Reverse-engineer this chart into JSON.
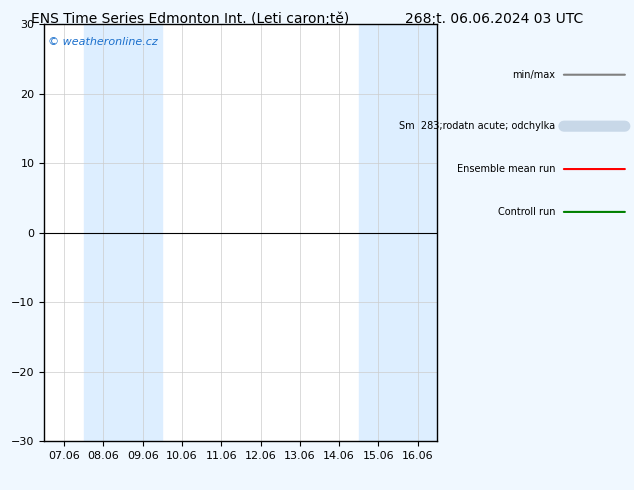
{
  "title_left": "ENS Time Series Edmonton Int. (Leti caron;tě)",
  "title_right": "268;t. 06.06.2024 03 UTC",
  "xlabel_ticks": [
    "07.06",
    "08.06",
    "09.06",
    "10.06",
    "11.06",
    "12.06",
    "13.06",
    "14.06",
    "15.06",
    "16.06"
  ],
  "ylim": [
    -30,
    30
  ],
  "yticks": [
    -30,
    -20,
    -10,
    0,
    10,
    20,
    30
  ],
  "bg_color": "#f0f8ff",
  "plot_bg_color": "#ffffff",
  "shaded_columns": [
    1,
    2,
    5,
    6
  ],
  "shaded_color": "#ddeeff",
  "watermark": "© weatheronline.cz",
  "legend_entries": [
    {
      "label": "min/max",
      "color": "#808080",
      "lw": 1.5,
      "style": "-"
    },
    {
      "label": "Sm  283;rodatn acute; odchylka",
      "color": "#c8d8e8",
      "lw": 8,
      "style": "-"
    },
    {
      "label": "Ensemble mean run",
      "color": "#ff0000",
      "lw": 1.5,
      "style": "-"
    },
    {
      "label": "Controll run",
      "color": "#008000",
      "lw": 1.5,
      "style": "-"
    }
  ],
  "frame_color": "#000000",
  "tick_fontsize": 8,
  "title_fontsize": 10,
  "watermark_color": "#1a6fcc",
  "grid_color": "#cccccc"
}
